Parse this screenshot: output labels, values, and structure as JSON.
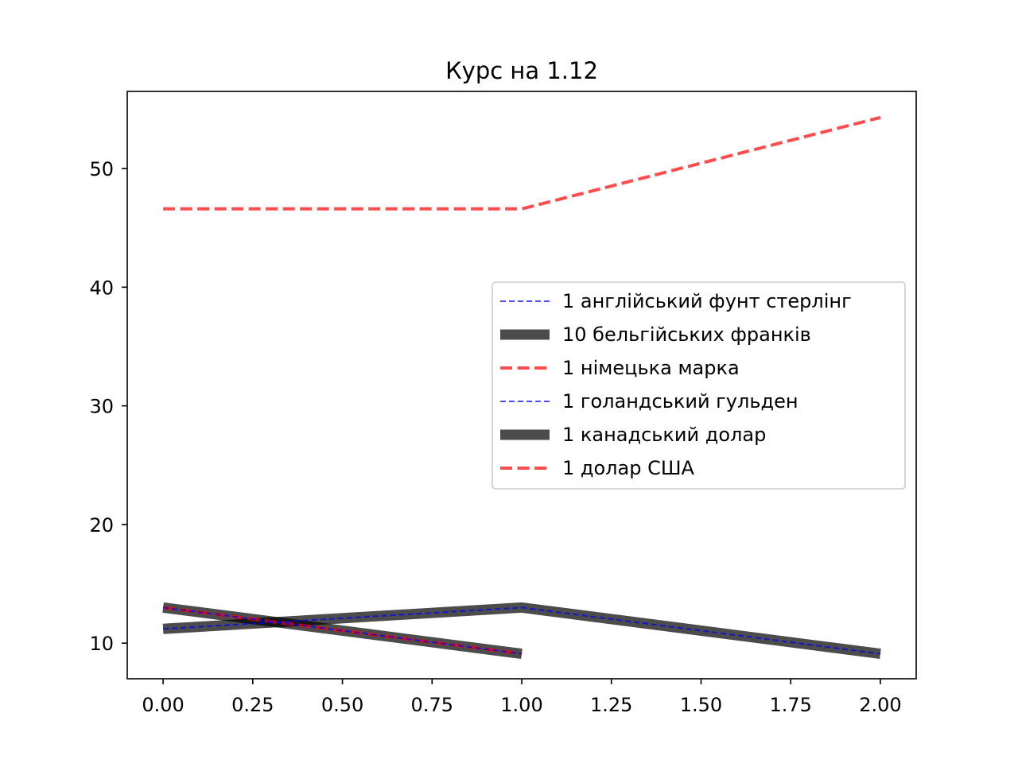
{
  "chart_data": {
    "type": "line",
    "title": "Курс на 1.12",
    "xlabel": "",
    "ylabel": "",
    "xlim": [
      -0.1,
      2.1
    ],
    "ylim": [
      7.0,
      56.5
    ],
    "x_ticks": [
      0.0,
      0.25,
      0.5,
      0.75,
      1.0,
      1.25,
      1.5,
      1.75,
      2.0
    ],
    "x_tick_labels": [
      "0.00",
      "0.25",
      "0.50",
      "0.75",
      "1.00",
      "1.25",
      "1.50",
      "1.75",
      "2.00"
    ],
    "y_ticks": [
      10,
      20,
      30,
      40,
      50
    ],
    "y_tick_labels": [
      "10",
      "20",
      "30",
      "40",
      "50"
    ],
    "grid": false,
    "legend_position": "center-right",
    "series": [
      {
        "name": "1 англійський фунт стерлінг",
        "x": [
          0,
          1
        ],
        "y": [
          13.0,
          9.1
        ],
        "color": "#0000ff",
        "style": "dashed-thin"
      },
      {
        "name": "10 бельгійських франків",
        "x": [
          0,
          1
        ],
        "y": [
          13.0,
          9.1
        ],
        "color": "#000000",
        "style": "solid-thick"
      },
      {
        "name": "1 німецька марка",
        "x": [
          0,
          1
        ],
        "y": [
          13.0,
          9.1
        ],
        "color": "#ff0000",
        "style": "dashed-medium"
      },
      {
        "name": "1 голандський гульден",
        "x": [
          0,
          1,
          2
        ],
        "y": [
          11.2,
          13.0,
          9.1
        ],
        "color": "#0000ff",
        "style": "dashed-thin"
      },
      {
        "name": "1 канадський долар",
        "x": [
          0,
          1,
          2
        ],
        "y": [
          11.2,
          13.0,
          9.1
        ],
        "color": "#000000",
        "style": "solid-thick"
      },
      {
        "name": "1 долар США",
        "x": [
          0,
          1,
          2
        ],
        "y": [
          46.6,
          46.6,
          54.3
        ],
        "color": "#ff0000",
        "style": "dashed-medium"
      }
    ]
  }
}
